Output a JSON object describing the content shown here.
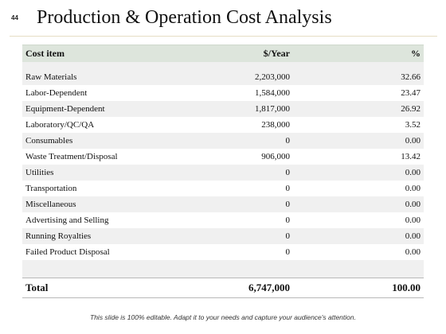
{
  "slide_number": "44",
  "title": "Production & Operation Cost Analysis",
  "table": {
    "headers": [
      "Cost item",
      "$/Year",
      "%"
    ],
    "rows": [
      [
        "Raw Materials",
        "2,203,000",
        "32.66"
      ],
      [
        "Labor-Dependent",
        "1,584,000",
        "23.47"
      ],
      [
        "Equipment-Dependent",
        "1,817,000",
        "26.92"
      ],
      [
        "Laboratory/QC/QA",
        "238,000",
        "3.52"
      ],
      [
        "Consumables",
        "0",
        "0.00"
      ],
      [
        "Waste Treatment/Disposal",
        "906,000",
        "13.42"
      ],
      [
        "Utilities",
        "0",
        "0.00"
      ],
      [
        "Transportation",
        "0",
        "0.00"
      ],
      [
        "Miscellaneous",
        "0",
        "0.00"
      ],
      [
        "Advertising and Selling",
        "0",
        "0.00"
      ],
      [
        "Running Royalties",
        "0",
        "0.00"
      ],
      [
        "Failed Product Disposal",
        "0",
        "0.00"
      ]
    ],
    "total": [
      "Total",
      "6,747,000",
      "100.00"
    ]
  },
  "footer": "This slide is 100% editable. Adapt it to your needs and capture your audience's attention."
}
